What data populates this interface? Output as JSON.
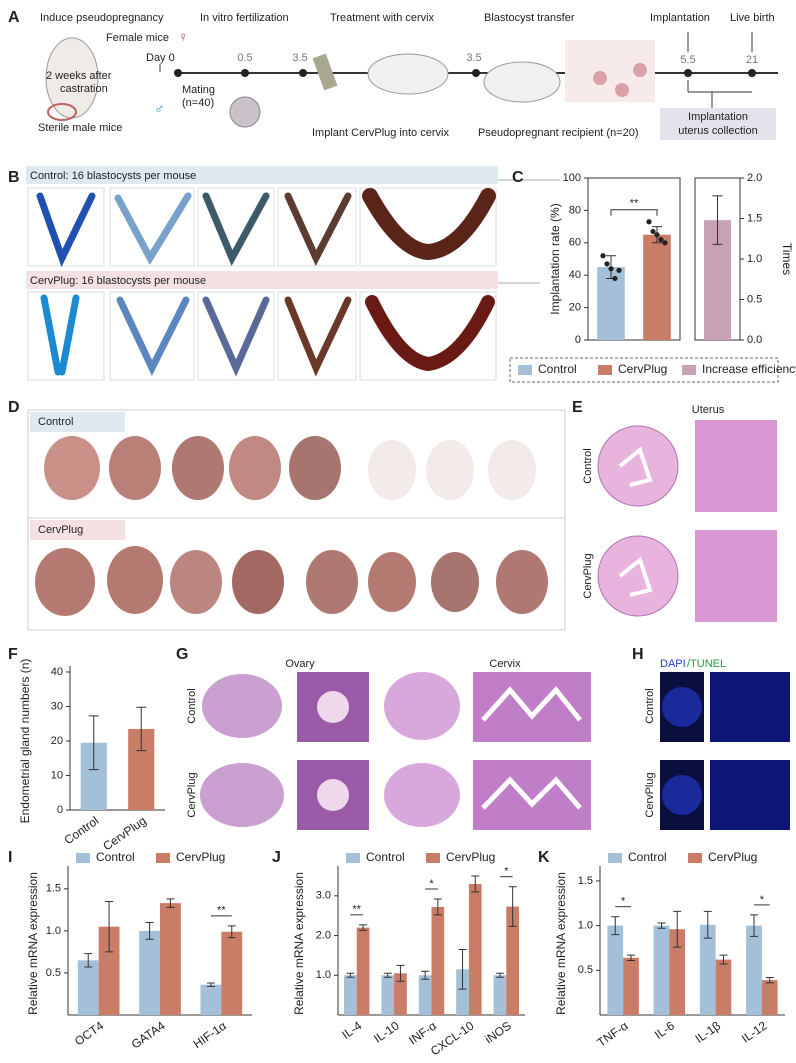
{
  "figure": {
    "A": {
      "label": "A",
      "induce": "Induce pseudopregnancy",
      "female": "Female mice",
      "day0": "Day 0",
      "castration": [
        "2 weeks after",
        "castration"
      ],
      "sterile": "Sterile male mice",
      "ivf": "In vitro fertilization",
      "mating": [
        "Mating",
        "(n=40)"
      ],
      "treatment": "Treatment with cervix",
      "implant": "Implant CervPlug into cervix",
      "transfer": "Blastocyst transfer",
      "recipient": "Pseudopregnant recipient (n=20)",
      "implantation": "Implantation",
      "birth": "Live birth",
      "days": [
        "0.5",
        "3.5",
        "3.5",
        "5.5",
        "21"
      ],
      "collection": [
        "Implantation",
        "uterus collection"
      ]
    },
    "B": {
      "label": "B",
      "control": "Control: 16 blastocysts per mouse",
      "cervplug": "CervPlug: 16 blastocysts per mouse"
    },
    "D": {
      "label": "D",
      "groups": [
        "Control",
        "CervPlug"
      ]
    },
    "E": {
      "label": "E",
      "title": "Uterus",
      "groups": [
        "Control",
        "CervPlug"
      ]
    },
    "G": {
      "label": "G",
      "tissues": [
        "Ovary",
        "Cervix"
      ],
      "groups": [
        "Control",
        "CervPlug"
      ]
    },
    "H": {
      "label": "H",
      "stains": [
        "DAPI",
        "/TUNEL"
      ],
      "groups": [
        "Control",
        "CervPlug"
      ]
    }
  },
  "chart_data": [
    {
      "type": "bar",
      "panel": "C",
      "ylabel": "Implantation rate (%)",
      "y2label": "Times",
      "ylim": [
        0,
        100
      ],
      "yticks": [
        0,
        20,
        40,
        60,
        80,
        100
      ],
      "y2lim": [
        0,
        2
      ],
      "y2ticks": [
        {
          "value": 0,
          "label": "0.0"
        },
        {
          "value": 0.5,
          "label": "0.5"
        },
        {
          "value": 1,
          "label": "1.0"
        },
        {
          "value": 1.5,
          "label": "1.5"
        },
        {
          "value": 2,
          "label": "2.0"
        }
      ],
      "significance": "**",
      "legend": "bottom",
      "series": [
        {
          "name": "Control",
          "color": "#a4bfd8",
          "values": [
            45
          ],
          "errors": [
            7
          ],
          "points": [
            52,
            47,
            44,
            38,
            43
          ]
        },
        {
          "name": "CervPlug",
          "color": "#c97c66",
          "values": [
            65
          ],
          "errors": [
            5
          ],
          "points": [
            73,
            67,
            65,
            62,
            60
          ]
        },
        {
          "name": "Increase efficiency",
          "color": "#c9a1b5",
          "values": [
            1.48
          ],
          "errors": [
            0.3
          ],
          "axis": "y2"
        }
      ]
    },
    {
      "type": "bar",
      "panel": "F",
      "ylabel": "Endometrial gland numbers (n)",
      "categories": [
        "Control",
        "CervPlug"
      ],
      "values": [
        19.5,
        23.5
      ],
      "errors": [
        7.8,
        6.3
      ],
      "colors": [
        "#a4bfd8",
        "#c97c66"
      ],
      "ylim": [
        0,
        40
      ],
      "yticks": [
        0,
        10,
        20,
        30,
        40
      ]
    },
    {
      "type": "bar",
      "panel": "I",
      "ylabel": "Relative mRNA expression",
      "legend": "top",
      "categories": [
        "OCT4",
        "GATA4",
        "HIF-1α"
      ],
      "series": [
        {
          "name": "Control",
          "color": "#a4bfd8",
          "values": [
            0.65,
            1.0,
            0.36
          ],
          "errors": [
            0.08,
            0.1,
            0.02
          ]
        },
        {
          "name": "CervPlug",
          "color": "#c97c66",
          "values": [
            1.05,
            1.33,
            0.99
          ],
          "errors": [
            0.3,
            0.05,
            0.07
          ]
        }
      ],
      "ylim": [
        0,
        1.7
      ],
      "yticks": [
        0.5,
        {
          "value": 1,
          "label": "1.0"
        },
        1.5
      ],
      "significance": [
        {
          "category": "HIF-1α",
          "text": "**"
        }
      ]
    },
    {
      "type": "bar",
      "panel": "J",
      "ylabel": "Relative mRNA expression",
      "legend": "top",
      "categories": [
        "IL-4",
        "IL-10",
        "INF-α",
        "CXCL-10",
        "iNOS"
      ],
      "series": [
        {
          "name": "Control",
          "color": "#a4bfd8",
          "values": [
            1.0,
            1.0,
            1.0,
            1.15,
            1.0
          ],
          "errors": [
            0.05,
            0.05,
            0.1,
            0.5,
            0.05
          ]
        },
        {
          "name": "CervPlug",
          "color": "#c97c66",
          "values": [
            2.2,
            1.05,
            2.72,
            3.3,
            2.73
          ],
          "errors": [
            0.07,
            0.2,
            0.2,
            0.2,
            0.5
          ]
        }
      ],
      "ylim": [
        0,
        3.6
      ],
      "yticks": [
        {
          "value": 1,
          "label": "1.0"
        },
        {
          "value": 2,
          "label": "2.0"
        },
        {
          "value": 3,
          "label": "3.0"
        }
      ],
      "significance": [
        {
          "category": "IL-4",
          "text": "**"
        },
        {
          "category": "INF-α",
          "text": "*"
        },
        {
          "category": "iNOS",
          "text": "*"
        }
      ]
    },
    {
      "type": "bar",
      "panel": "K",
      "ylabel": "Relative mRNA expression",
      "legend": "top",
      "categories": [
        "TNF-α",
        "IL-6",
        "IL-1β",
        "IL-12"
      ],
      "series": [
        {
          "name": "Control",
          "color": "#a4bfd8",
          "values": [
            1.0,
            1.0,
            1.01,
            1.0
          ],
          "errors": [
            0.1,
            0.03,
            0.15,
            0.12
          ]
        },
        {
          "name": "CervPlug",
          "color": "#c97c66",
          "values": [
            0.64,
            0.96,
            0.62,
            0.39
          ],
          "errors": [
            0.03,
            0.2,
            0.05,
            0.03
          ]
        }
      ],
      "ylim": [
        0,
        1.6
      ],
      "yticks": [
        0.5,
        {
          "value": 1,
          "label": "1.0"
        },
        1.5
      ],
      "significance": [
        {
          "category": "TNF-α",
          "text": "*"
        },
        {
          "category": "IL-12",
          "text": "*"
        }
      ]
    }
  ]
}
